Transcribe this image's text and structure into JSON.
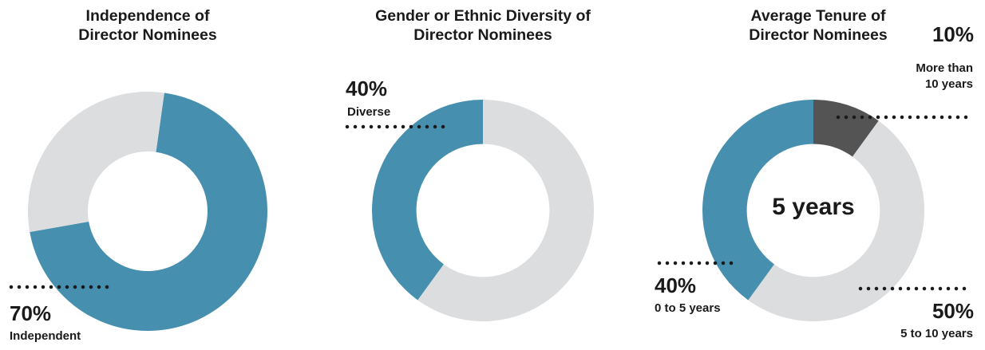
{
  "colors": {
    "accent": "#478fae",
    "neutral": "#dcdddf",
    "dark": "#545454",
    "text": "#1a1a1a"
  },
  "chart_data": [
    {
      "type": "pie",
      "variant": "donut",
      "title": [
        "Independence of",
        "Director Nominees"
      ],
      "slices": [
        {
          "value": 70,
          "label": "70%",
          "category": "Independent",
          "color": "#478fae"
        },
        {
          "value": 30,
          "label": "",
          "category": "",
          "color": "#dcdddf"
        }
      ]
    },
    {
      "type": "pie",
      "variant": "donut",
      "title": [
        "Gender or Ethnic Diversity of",
        "Director Nominees"
      ],
      "slices": [
        {
          "value": 40,
          "label": "40%",
          "category": "Diverse",
          "color": "#478fae"
        },
        {
          "value": 60,
          "label": "",
          "category": "",
          "color": "#dcdddf"
        }
      ]
    },
    {
      "type": "pie",
      "variant": "donut",
      "title": [
        "Average Tenure of",
        "Director Nominees"
      ],
      "center_label": "5 years",
      "slices": [
        {
          "value": 10,
          "label": "10%",
          "category": "More than 10 years",
          "category_lines": [
            "More than",
            "10 years"
          ],
          "color": "#545454"
        },
        {
          "value": 50,
          "label": "50%",
          "category": "5 to 10 years",
          "color": "#dcdddf"
        },
        {
          "value": 40,
          "label": "40%",
          "category": "0 to 5 years",
          "color": "#478fae"
        }
      ]
    }
  ]
}
